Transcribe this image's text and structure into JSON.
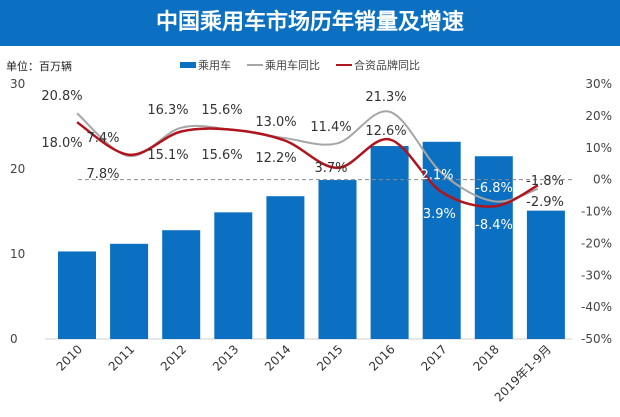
{
  "title": "中国乘用车市场历年销量及增速",
  "unit_label": "单位：百万辆",
  "chart_data": {
    "type": "bar+line",
    "title": "中国乘用车市场历年销量及增速",
    "categories": [
      "2010",
      "2011",
      "2012",
      "2013",
      "2014",
      "2015",
      "2016",
      "2017",
      "2018",
      "2019年1-9月"
    ],
    "series": [
      {
        "name": "乘用车",
        "type": "bar",
        "axis": "left",
        "color": "#0b6fc2",
        "values": [
          10.3,
          11.2,
          12.8,
          14.9,
          16.8,
          18.7,
          22.7,
          23.2,
          21.5,
          15.1
        ]
      },
      {
        "name": "乘用车同比",
        "type": "line",
        "axis": "right",
        "color": "#a6a6a6",
        "values": [
          20.8,
          7.4,
          16.3,
          15.6,
          13.0,
          11.4,
          21.3,
          2.1,
          -6.8,
          -2.9
        ],
        "labels": [
          "20.8%",
          "7.4%",
          "16.3%",
          "15.6%",
          "13.0%",
          "11.4%",
          "21.3%",
          "2.1%",
          "-6.8%",
          "-2.9%"
        ]
      },
      {
        "name": "合资品牌同比",
        "type": "line",
        "axis": "right",
        "color": "#b0141c",
        "values": [
          18.0,
          7.8,
          15.1,
          15.6,
          12.2,
          3.7,
          12.6,
          -3.9,
          -8.4,
          -1.8
        ],
        "labels": [
          "18.0%",
          "7.8%",
          "15.1%",
          "15.6%",
          "12.2%",
          "3.7%",
          "12.6%",
          "-3.9%",
          "-8.4%",
          "-1.8%"
        ]
      }
    ],
    "left_axis": {
      "range": [
        0,
        30
      ],
      "ticks": [
        "0",
        "10",
        "20",
        "30"
      ]
    },
    "right_axis": {
      "range": [
        -50,
        30
      ],
      "ticks": [
        "30%",
        "20%",
        "10%",
        "0%",
        "-10%",
        "-20%",
        "-30%",
        "-40%",
        "-50%"
      ]
    },
    "zero_line": "dashed",
    "grid": false,
    "legend_position": "top"
  }
}
